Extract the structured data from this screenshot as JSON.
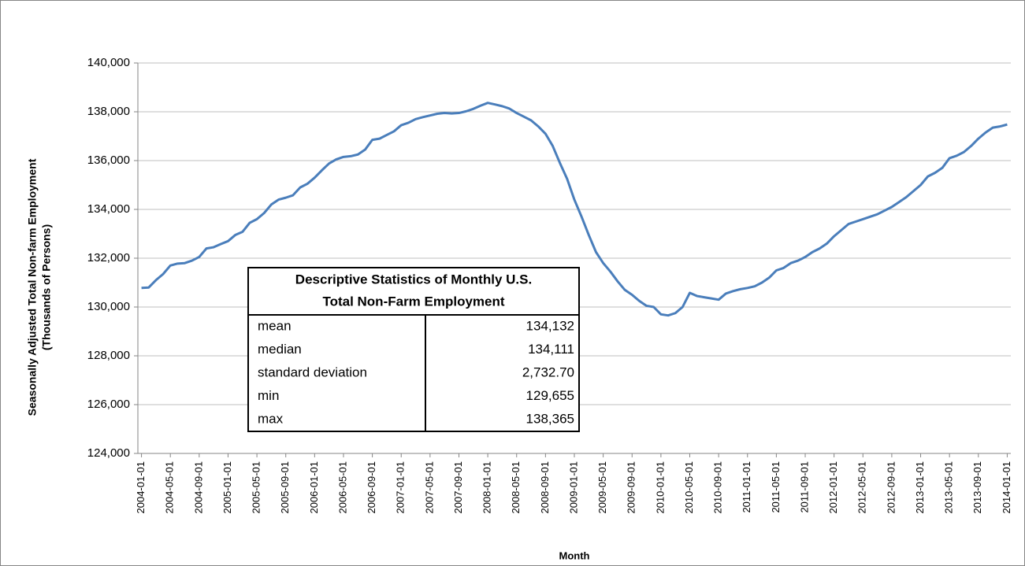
{
  "chart_data": {
    "type": "line",
    "y_label": [
      "Seasonally Adjusted Total Non-farm Employment",
      "(Thousands of Persons)"
    ],
    "x_label": "Month",
    "categories": [
      "2004-01-01",
      null,
      null,
      null,
      "2004-05-01",
      null,
      null,
      null,
      "2004-09-01",
      null,
      null,
      null,
      "2005-01-01",
      null,
      null,
      null,
      "2005-05-01",
      null,
      null,
      null,
      "2005-09-01",
      null,
      null,
      null,
      "2006-01-01",
      null,
      null,
      null,
      "2006-05-01",
      null,
      null,
      null,
      "2006-09-01",
      null,
      null,
      null,
      "2007-01-01",
      null,
      null,
      null,
      "2007-05-01",
      null,
      null,
      null,
      "2007-09-01",
      null,
      null,
      null,
      "2008-01-01",
      null,
      null,
      null,
      "2008-05-01",
      null,
      null,
      null,
      "2008-09-01",
      null,
      null,
      null,
      "2009-01-01",
      null,
      null,
      null,
      "2009-05-01",
      null,
      null,
      null,
      "2009-09-01",
      null,
      null,
      null,
      "2010-01-01",
      null,
      null,
      null,
      "2010-05-01",
      null,
      null,
      null,
      "2010-09-01",
      null,
      null,
      null,
      "2011-01-01",
      null,
      null,
      null,
      "2011-05-01",
      null,
      null,
      null,
      "2011-09-01",
      null,
      null,
      null,
      "2012-01-01",
      null,
      null,
      null,
      "2012-05-01",
      null,
      null,
      null,
      "2012-09-01",
      null,
      null,
      null,
      "2013-01-01",
      null,
      null,
      null,
      "2013-05-01",
      null,
      null,
      null,
      "2013-09-01",
      null,
      null,
      null,
      "2014-01-01"
    ],
    "series": [
      {
        "color": "#4a7ebb",
        "values": [
          130781,
          130800,
          131100,
          131350,
          131700,
          131780,
          131800,
          131900,
          132050,
          132400,
          132450,
          132580,
          132700,
          132950,
          133080,
          133450,
          133600,
          133850,
          134200,
          134400,
          134480,
          134580,
          134900,
          135050,
          135300,
          135600,
          135880,
          136050,
          136150,
          136180,
          136250,
          136450,
          136850,
          136900,
          137050,
          137200,
          137450,
          137550,
          137700,
          137780,
          137850,
          137920,
          137950,
          137930,
          137950,
          138020,
          138120,
          138250,
          138365,
          138300,
          138230,
          138130,
          137950,
          137800,
          137650,
          137400,
          137100,
          136600,
          135900,
          135250,
          134400,
          133700,
          132950,
          132250,
          131800,
          131450,
          131050,
          130700,
          130500,
          130250,
          130050,
          130000,
          129700,
          129655,
          129750,
          130000,
          130580,
          130450,
          130400,
          130350,
          130300,
          130550,
          130650,
          130730,
          130780,
          130850,
          131000,
          131200,
          131500,
          131600,
          131800,
          131900,
          132050,
          132250,
          132400,
          132600,
          132900,
          133150,
          133400,
          133500,
          133600,
          133700,
          133800,
          133950,
          134100,
          134300,
          134500,
          134750,
          135000,
          135350,
          135500,
          135700,
          136100,
          136200,
          136350,
          136600,
          136900,
          137150,
          137350,
          137400,
          137480
        ]
      }
    ],
    "ylim": [
      124000,
      140000
    ],
    "yticks": [
      {
        "value": 124000,
        "label": "124,000"
      },
      {
        "value": 126000,
        "label": "126,000"
      },
      {
        "value": 128000,
        "label": "128,000"
      },
      {
        "value": 130000,
        "label": "130,000"
      },
      {
        "value": 132000,
        "label": "132,000"
      },
      {
        "value": 134000,
        "label": "134,000"
      },
      {
        "value": 136000,
        "label": "136,000"
      },
      {
        "value": 138000,
        "label": "138,000"
      },
      {
        "value": 140000,
        "label": "140,000"
      }
    ],
    "grid": true,
    "stats_table": {
      "title": [
        "Descriptive Statistics of Monthly U.S.",
        "Total Non-Farm Employment"
      ],
      "rows": [
        [
          "mean",
          "134,132"
        ],
        [
          "median",
          "134,111"
        ],
        [
          "standard deviation",
          "2,732.70"
        ],
        [
          "min",
          "129,655"
        ],
        [
          "max",
          "138,365"
        ]
      ]
    }
  }
}
